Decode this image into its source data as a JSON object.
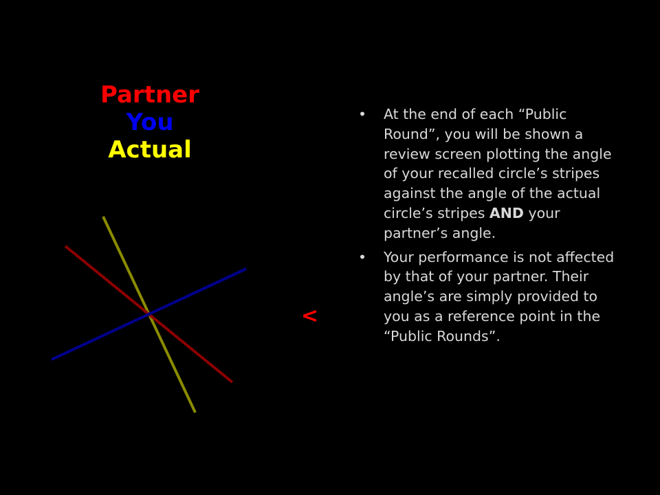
{
  "legend": {
    "partner_label": "Partner",
    "you_label": "You",
    "actual_label": "Actual"
  },
  "colors": {
    "background": "#000000",
    "partner": "#ff0000",
    "you": "#0000ee",
    "actual": "#ffff00",
    "partner_line": "#8b0000",
    "you_line": "#00008b",
    "actual_line": "#8b8b00",
    "text": "#d9d9d9",
    "arrow": "#ff0000"
  },
  "arrow_symbol": "<",
  "bullets": [
    {
      "text": "At the end of each “Public Round”, you will be shown a review screen plotting the angle of your recalled circle’s stripes against the angle of the actual circle’s stripes ",
      "bold": "AND",
      "tail": " your partner’s angle."
    },
    {
      "text": "Your performance is not affected by that of your partner. Their angle’s are simply provided to you as a reference point in the “Public Rounds”.",
      "bold": "",
      "tail": ""
    }
  ],
  "bullet_symbol": "•"
}
